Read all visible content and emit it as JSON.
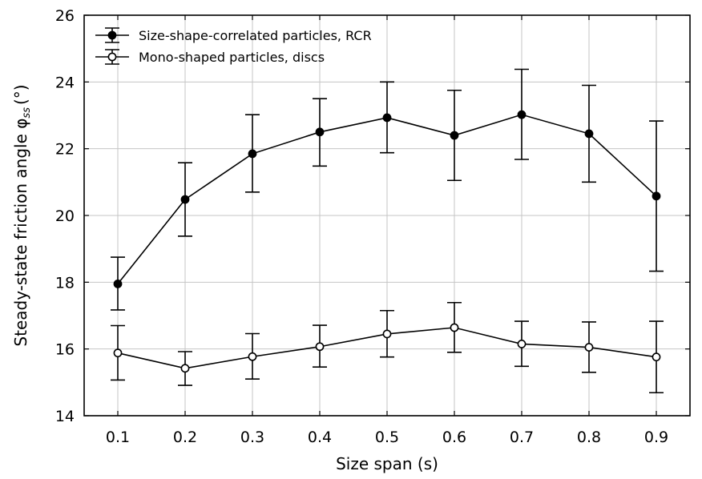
{
  "chart_data": {
    "type": "line",
    "title": "",
    "xlabel": "Size span (s)",
    "ylabel": "Steady-state friction angle φ",
    "ylabel_sub": "ss",
    "ylabel_unit": "(°)",
    "xlim": [
      0.05,
      0.95
    ],
    "ylim": [
      14,
      26
    ],
    "x": [
      0.1,
      0.2,
      0.3,
      0.4,
      0.5,
      0.6,
      0.7,
      0.8,
      0.9
    ],
    "x_tick_labels": [
      "0.1",
      "0.2",
      "0.3",
      "0.4",
      "0.5",
      "0.6",
      "0.7",
      "0.8",
      "0.9"
    ],
    "y_ticks": [
      14,
      16,
      18,
      20,
      22,
      24,
      26
    ],
    "y_tick_labels": [
      "14",
      "16",
      "18",
      "20",
      "22",
      "24",
      "26"
    ],
    "grid": true,
    "legend_position": "top-left",
    "series": [
      {
        "name": "Size-shape-correlated particles, RCR",
        "marker": "filled-circle",
        "color": "#000000",
        "values": [
          17.95,
          20.48,
          21.85,
          22.5,
          22.93,
          22.4,
          23.02,
          22.45,
          20.58
        ],
        "error_lower": [
          17.17,
          19.38,
          20.7,
          21.48,
          21.88,
          21.05,
          21.68,
          21.0,
          18.33
        ],
        "error_upper": [
          18.75,
          21.58,
          23.02,
          23.5,
          24.0,
          23.75,
          24.38,
          23.9,
          22.83
        ]
      },
      {
        "name": "Mono-shaped particles, discs",
        "marker": "open-circle",
        "color": "#000000",
        "values": [
          15.88,
          15.42,
          15.77,
          16.07,
          16.45,
          16.64,
          16.15,
          16.05,
          15.76
        ],
        "error_lower": [
          15.07,
          14.91,
          15.1,
          15.46,
          15.76,
          15.9,
          15.48,
          15.3,
          14.69
        ],
        "error_upper": [
          16.7,
          15.92,
          16.46,
          16.71,
          17.15,
          17.39,
          16.83,
          16.81,
          16.83
        ]
      }
    ]
  }
}
